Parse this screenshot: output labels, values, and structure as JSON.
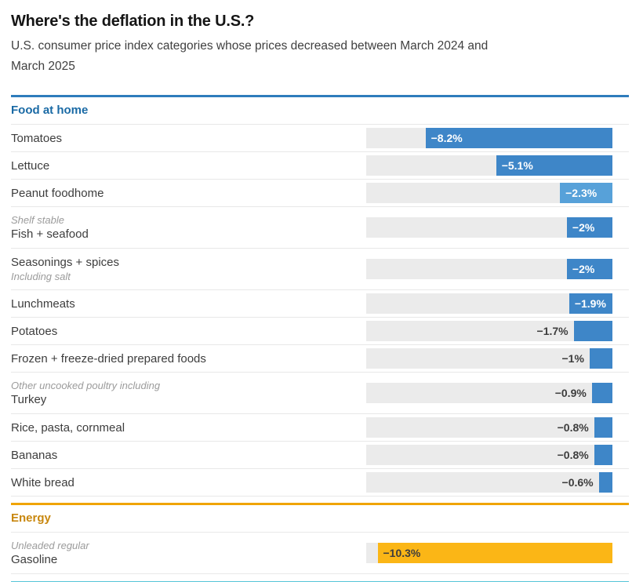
{
  "title": "Where's the deflation in the U.S.?",
  "subtitle": "U.S. consumer price index categories whose prices decreased between March 2024 and March 2025",
  "subtitle_lines": [
    "U.S. consumer price index categories whose prices decreased between March 2024 and",
    "March 2025"
  ],
  "colors": {
    "blue_line": "#2e7cbc",
    "blue_header": "#1a6aa5",
    "blue_bar": "#3e86c8",
    "light_blue": "#57a1d9",
    "gold_line": "#f0a400",
    "gold_header": "#c8870e",
    "gold_bar": "#fbb616",
    "cyan_line": "#56c5d8",
    "track_gray": "#ebebeb",
    "divider_gray": "#e8e8e8",
    "label_dark": "#3d3d3d",
    "note_gray": "#9b9b9b"
  },
  "scale_max_pct": 10.8,
  "sections": [
    {
      "label": "Food at home",
      "accent": "blue",
      "items": [
        {
          "label": "Tomatoes",
          "value": -8.2,
          "display": "−8.2%"
        },
        {
          "label": "Lettuce",
          "value": -5.1,
          "display": "−5.1%"
        },
        {
          "label": "Peanut foodhome",
          "value": -2.3,
          "display": "−2.3%",
          "bar": "light_blue"
        },
        {
          "label": "Fish + seafood",
          "note_above": "Shelf stable",
          "value": -2,
          "display": "−2%"
        },
        {
          "label": "Seasonings + spices",
          "note_below": "Including salt",
          "value": -2,
          "display": "−2%"
        },
        {
          "label": "Lunchmeats",
          "value": -1.9,
          "display": "−1.9%"
        },
        {
          "label": "Potatoes",
          "value": -1.7,
          "display": "−1.7%"
        },
        {
          "label": "Frozen + freeze-dried prepared foods",
          "value": -1,
          "display": "−1%"
        },
        {
          "label": "Turkey",
          "note_above": "Other uncooked poultry including",
          "value": -0.9,
          "display": "−0.9%"
        },
        {
          "label": "Rice, pasta, cornmeal",
          "value": -0.8,
          "display": "−0.8%"
        },
        {
          "label": "Bananas",
          "value": -0.8,
          "display": "−0.8%"
        },
        {
          "label": "White bread",
          "value": -0.6,
          "display": "−0.6%"
        }
      ]
    },
    {
      "label": "Energy",
      "accent": "gold",
      "items": [
        {
          "label": "Gasoline",
          "note_above": "Unleaded regular",
          "value": -10.3,
          "display": "−10.3%"
        }
      ]
    }
  ],
  "chart_data": {
    "type": "bar",
    "orientation": "horizontal",
    "title": "Where's the deflation in the U.S.?",
    "subtitle": "U.S. consumer price index categories whose prices decreased between March 2024 and March 2025",
    "unit": "%",
    "xlim": [
      -10.8,
      0
    ],
    "grid": false,
    "legend": false,
    "series": [
      {
        "name": "Food at home",
        "color": "#3e86c8",
        "categories": [
          "Tomatoes",
          "Lettuce",
          "Peanut foodhome",
          "Fish + seafood (Shelf stable)",
          "Seasonings + spices (Including salt)",
          "Lunchmeats",
          "Potatoes",
          "Frozen + freeze-dried prepared foods",
          "Turkey (Other uncooked poultry including)",
          "Rice, pasta, cornmeal",
          "Bananas",
          "White bread"
        ],
        "values": [
          -8.2,
          -5.1,
          -2.3,
          -2,
          -2,
          -1.9,
          -1.7,
          -1,
          -0.9,
          -0.8,
          -0.8,
          -0.6
        ]
      },
      {
        "name": "Energy",
        "color": "#fbb616",
        "categories": [
          "Gasoline (Unleaded regular)"
        ],
        "values": [
          -10.3
        ]
      }
    ]
  }
}
